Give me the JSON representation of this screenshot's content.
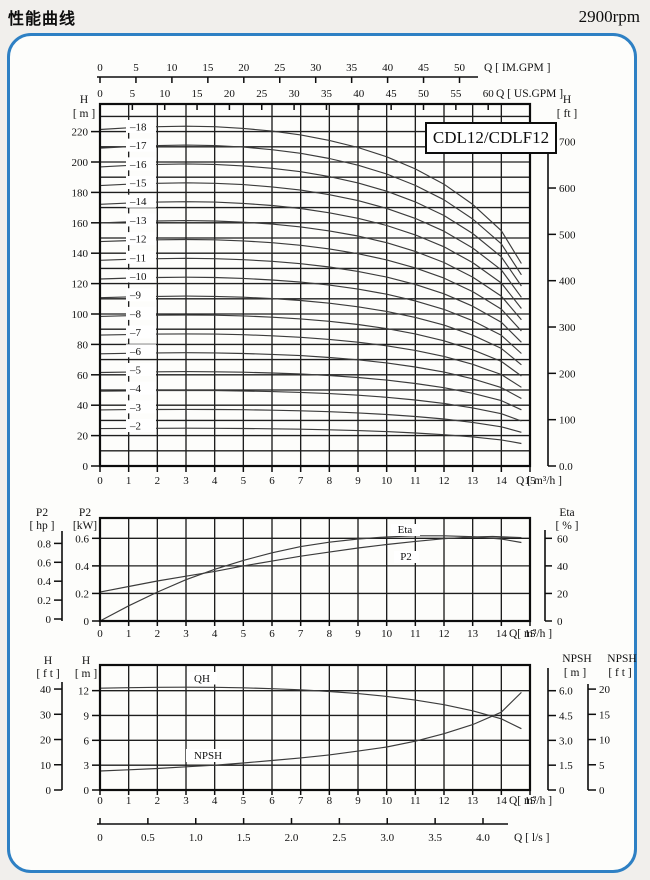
{
  "page": {
    "title": "性能曲线",
    "speed": "2900rpm"
  },
  "chart_data": [
    {
      "id": "head-capacity-curves",
      "type": "line",
      "model_label": "CDL12/CDLF12",
      "x_axis_top1": {
        "label": "Q [ IM.GPM ]",
        "ticks": [
          0,
          5,
          10,
          15,
          20,
          25,
          30,
          35,
          40,
          45,
          50
        ]
      },
      "x_axis_top2": {
        "label": "Q [ US.GPM ]",
        "ticks": [
          0,
          5,
          10,
          15,
          20,
          25,
          30,
          35,
          40,
          45,
          50,
          55,
          60
        ]
      },
      "x_axis_bottom": {
        "label": "Q [ m³/h ]",
        "ticks": [
          0,
          1,
          2,
          3,
          4,
          5,
          6,
          7,
          8,
          9,
          10,
          11,
          12,
          13,
          14,
          15
        ]
      },
      "y_axis_left": {
        "title": "H",
        "unit": "[ m ]",
        "ticks": [
          0,
          20,
          40,
          60,
          80,
          100,
          120,
          140,
          160,
          180,
          200,
          220
        ]
      },
      "y_axis_right": {
        "title": "H",
        "unit": "[ ft ]",
        "ticks": [
          "0.0",
          "100",
          "200",
          "300",
          "400",
          "500",
          "600",
          "700"
        ]
      },
      "grid": "on",
      "stages": [
        2,
        3,
        4,
        5,
        6,
        7,
        8,
        9,
        10,
        11,
        12,
        13,
        14,
        15,
        16,
        17,
        18
      ],
      "stage_label_prefix": "–",
      "q": [
        0,
        1,
        2,
        3,
        4,
        5,
        6,
        7,
        8,
        9,
        10,
        11,
        12,
        13,
        14,
        14.7
      ],
      "single_stage_head_m": [
        12.3,
        12.36,
        12.4,
        12.42,
        12.4,
        12.34,
        12.24,
        12.1,
        11.9,
        11.64,
        11.3,
        10.86,
        10.3,
        9.56,
        8.6,
        7.4
      ]
    },
    {
      "id": "power-efficiency",
      "type": "line",
      "x_axis": {
        "label": "Q[ m³/h ]",
        "ticks": [
          0,
          1,
          2,
          3,
          4,
          5,
          6,
          7,
          8,
          9,
          10,
          11,
          12,
          13,
          14,
          15
        ]
      },
      "y_axis_hp": {
        "title": "P2",
        "unit": "[ hp ]",
        "ticks": [
          "0",
          "0.2",
          "0.4",
          "0.6",
          "0.8"
        ]
      },
      "y_axis_kw": {
        "title": "P2",
        "unit": "[kW]",
        "ticks": [
          "0",
          "0.2",
          "0.4",
          "0.6"
        ]
      },
      "y_axis_eta": {
        "title": "Eta",
        "unit": "[ % ]",
        "ticks": [
          "0",
          "20",
          "40",
          "60"
        ]
      },
      "grid": "on",
      "series": [
        {
          "name": "P2",
          "axis": "kW",
          "x": [
            0,
            1,
            2,
            3,
            4,
            5,
            6,
            7,
            8,
            9,
            10,
            11,
            12,
            13,
            13.7,
            14.7
          ],
          "y": [
            0.21,
            0.25,
            0.29,
            0.325,
            0.36,
            0.4,
            0.435,
            0.47,
            0.5,
            0.53,
            0.555,
            0.578,
            0.597,
            0.61,
            0.613,
            0.605
          ]
        },
        {
          "name": "Eta",
          "axis": "%",
          "x": [
            0,
            1,
            2,
            3,
            4,
            5,
            6,
            7,
            8,
            9,
            10,
            11,
            12,
            13,
            14,
            14.7
          ],
          "y": [
            0,
            11,
            21,
            30,
            37.5,
            44,
            49.5,
            54,
            57.2,
            59.5,
            61,
            61.8,
            61.8,
            61.2,
            59.5,
            57
          ]
        }
      ]
    },
    {
      "id": "qh-npsh",
      "type": "line",
      "x_axis": {
        "label": "Q[ m³/h ]",
        "ticks": [
          0,
          1,
          2,
          3,
          4,
          5,
          6,
          7,
          8,
          9,
          10,
          11,
          12,
          13,
          14,
          15
        ]
      },
      "x_axis_ls": {
        "label": "Q [ l/s ]",
        "ticks": [
          "0",
          "0.5",
          "1.0",
          "1.5",
          "2.0",
          "2.5",
          "3.0",
          "3.5",
          "4.0"
        ]
      },
      "y_axis_ft": {
        "title": "H",
        "unit": "[ f t ]",
        "ticks": [
          0,
          10,
          20,
          30,
          40
        ]
      },
      "y_axis_m": {
        "title": "H",
        "unit": "[ m ]",
        "ticks": [
          0,
          3,
          6,
          9,
          12
        ]
      },
      "y_axis_npsh_m": {
        "title": "NPSH",
        "unit": "[ m ]",
        "ticks": [
          "0",
          "1.5",
          "3.0",
          "4.5",
          "6.0"
        ]
      },
      "y_axis_npsh_ft": {
        "title": "NPSH",
        "unit": "[ f t ]",
        "ticks": [
          0,
          5,
          10,
          15,
          20
        ]
      },
      "grid": "on",
      "series": [
        {
          "name": "QH",
          "axis": "H_m",
          "x": [
            0,
            1,
            2,
            3,
            4,
            5,
            6,
            7,
            8,
            9,
            10,
            11,
            12,
            13,
            14,
            14.7
          ],
          "y": [
            12.3,
            12.36,
            12.4,
            12.42,
            12.4,
            12.34,
            12.24,
            12.1,
            11.9,
            11.64,
            11.3,
            10.86,
            10.3,
            9.56,
            8.6,
            7.4
          ]
        },
        {
          "name": "NPSH",
          "axis": "NPSH_m",
          "x": [
            0,
            1,
            2,
            3,
            4,
            5,
            6,
            7,
            8,
            9,
            10,
            11,
            12,
            13,
            14,
            14.7
          ],
          "y": [
            1.15,
            1.22,
            1.3,
            1.4,
            1.5,
            1.63,
            1.78,
            1.94,
            2.12,
            2.35,
            2.6,
            2.95,
            3.4,
            3.95,
            4.7,
            5.9
          ]
        }
      ]
    }
  ]
}
